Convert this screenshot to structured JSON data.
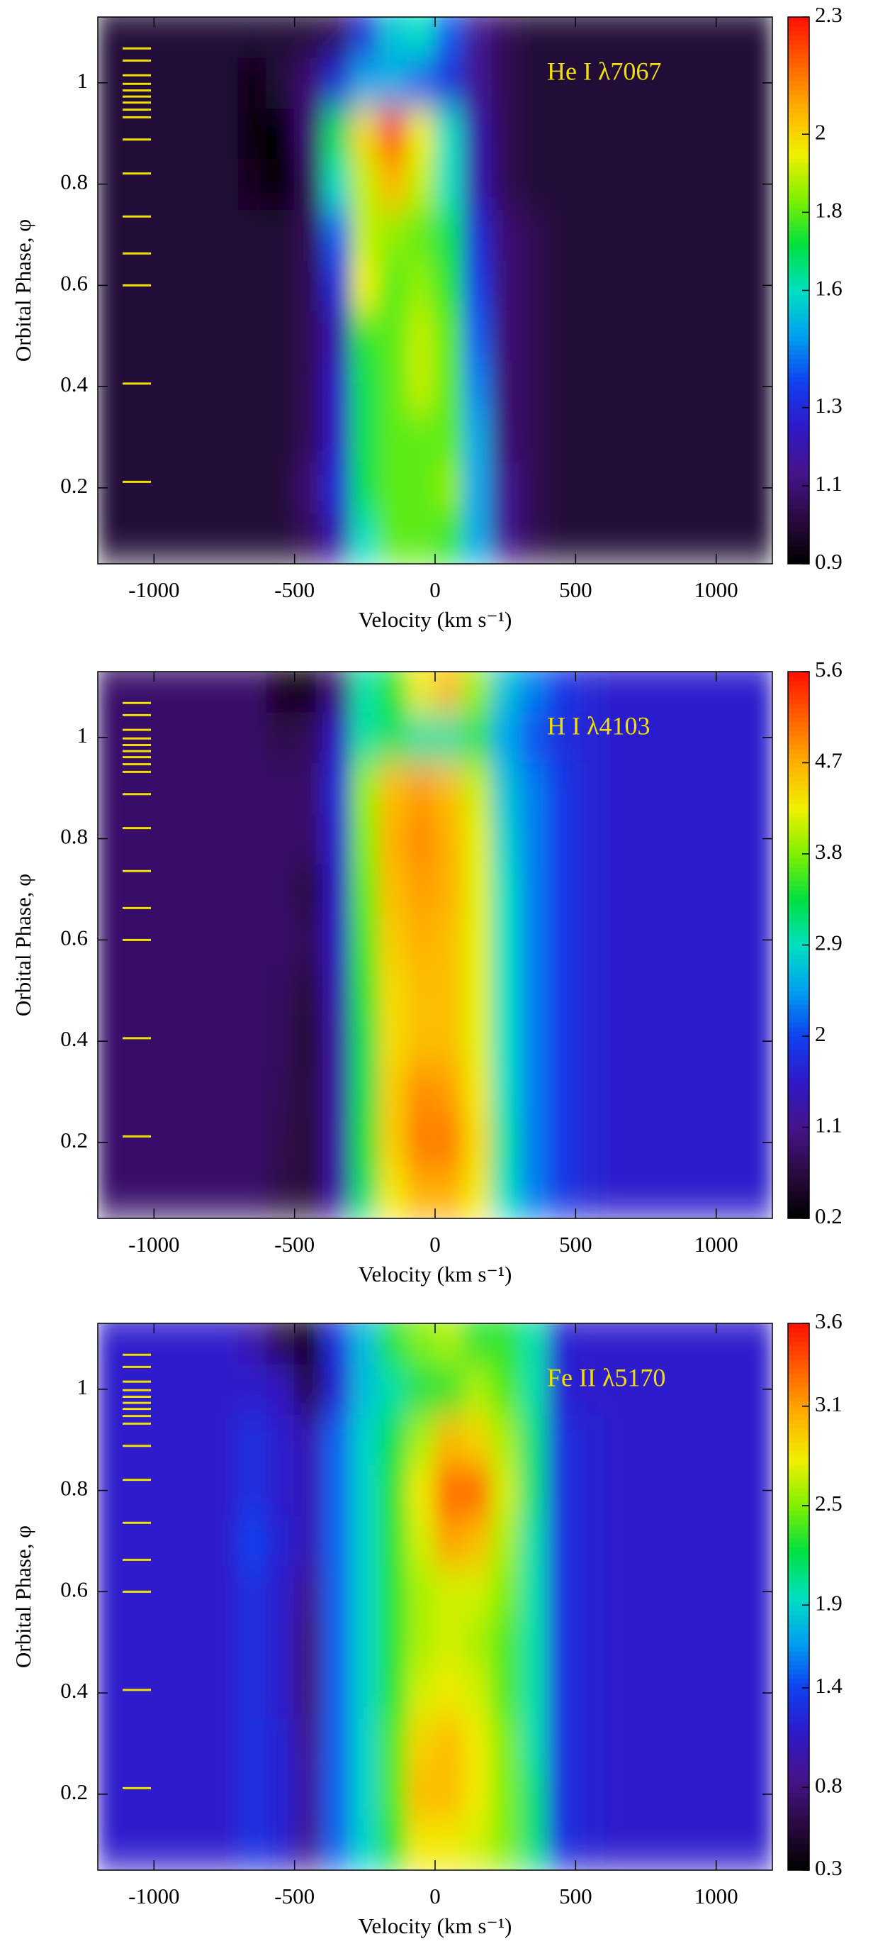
{
  "chart_data": [
    {
      "type": "heatmap",
      "annotation": "He I λ7067",
      "xlabel": "Velocity (km s⁻¹)",
      "ylabel": "Orbital Phase, φ",
      "xlim": [
        -1200,
        1200
      ],
      "xticks": [
        -1000,
        -500,
        0,
        500,
        1000
      ],
      "ylim": [
        0.05,
        1.13
      ],
      "yticks": [
        0.2,
        0.4,
        0.6,
        0.8,
        1.0
      ],
      "zlim": [
        0.9,
        2.3
      ],
      "zticks": [
        0.9,
        1.1,
        1.3,
        1.6,
        1.8,
        2.0,
        2.3
      ],
      "colormap": [
        "#000000",
        "#2a0a40",
        "#45148a",
        "#3018c8",
        "#1040f0",
        "#00a0f0",
        "#00e0c0",
        "#00e040",
        "#80f000",
        "#f0f000",
        "#ffb000",
        "#ff6000",
        "#ff1000"
      ],
      "annotation_color": "#f0e000",
      "marker_color": "#f0e000",
      "phase_markers": [
        1.068,
        1.044,
        1.015,
        0.998,
        0.985,
        0.973,
        0.961,
        0.947,
        0.932,
        0.888,
        0.821,
        0.736,
        0.663,
        0.6,
        0.406,
        0.212
      ],
      "x": [
        -1150,
        -1050,
        -950,
        -850,
        -750,
        -650,
        -550,
        -450,
        -350,
        -250,
        -150,
        -50,
        50,
        150,
        250,
        350,
        450,
        550,
        650,
        750,
        850,
        950,
        1050,
        1150
      ],
      "y": [
        0.1,
        0.2,
        0.3,
        0.4,
        0.5,
        0.6,
        0.7,
        0.8,
        0.9,
        1.0,
        1.1
      ],
      "z": [
        [
          1,
          1,
          1,
          1,
          1,
          1,
          1,
          1.05,
          1.2,
          1.6,
          1.8,
          1.8,
          1.75,
          1.5,
          1.15,
          1.05,
          1,
          1,
          1,
          1,
          1,
          1,
          1,
          1
        ],
        [
          1,
          1,
          1,
          1,
          1,
          1,
          1,
          1.1,
          1.3,
          1.7,
          1.8,
          1.8,
          1.85,
          1.5,
          1.15,
          1.05,
          1,
          1,
          1,
          1,
          1,
          1,
          1,
          1
        ],
        [
          1,
          1,
          1,
          1,
          1,
          1,
          1,
          1.05,
          1.25,
          1.7,
          1.8,
          1.8,
          1.8,
          1.5,
          1.1,
          1.05,
          1,
          1,
          1,
          1,
          1,
          1,
          1,
          1
        ],
        [
          1,
          1,
          1,
          1,
          1,
          1,
          1,
          1.05,
          1.25,
          1.7,
          1.8,
          1.9,
          1.8,
          1.45,
          1.1,
          1.05,
          1,
          1,
          1,
          1,
          1,
          1,
          1,
          1
        ],
        [
          1,
          1,
          1,
          1,
          1,
          1,
          1,
          1.05,
          1.2,
          1.75,
          1.8,
          1.9,
          1.8,
          1.4,
          1.1,
          1.05,
          1,
          1,
          1,
          1,
          1,
          1,
          1,
          1
        ],
        [
          1,
          1,
          1,
          1,
          1,
          1,
          1,
          1.05,
          1.3,
          1.95,
          1.8,
          1.85,
          1.75,
          1.35,
          1.1,
          1.05,
          1,
          1,
          1,
          1,
          1,
          1,
          1,
          1
        ],
        [
          1,
          1,
          1,
          1,
          1,
          1,
          1,
          1.05,
          1.4,
          1.9,
          1.85,
          1.8,
          1.7,
          1.3,
          1.1,
          1.05,
          1,
          1,
          1,
          1,
          1,
          1,
          1,
          1
        ],
        [
          1,
          1,
          1,
          1,
          1,
          0.95,
          0.9,
          1.05,
          1.6,
          1.9,
          2.05,
          1.9,
          1.6,
          1.2,
          1.05,
          1,
          1,
          1,
          1,
          1,
          1,
          1,
          1,
          1
        ],
        [
          1,
          1,
          1,
          1,
          1,
          0.92,
          0.9,
          1.1,
          1.7,
          2.0,
          2.2,
          1.95,
          1.6,
          1.2,
          1.05,
          1,
          1,
          1,
          1,
          1,
          1,
          1,
          1,
          1
        ],
        [
          1,
          1,
          1,
          1,
          1,
          0.92,
          1,
          1.1,
          1.3,
          1.5,
          1.5,
          1.4,
          1.3,
          1.15,
          1.05,
          1,
          1,
          1,
          1,
          1,
          1,
          1,
          1,
          1
        ],
        [
          1,
          1,
          1,
          1,
          1,
          1,
          1,
          1,
          1.05,
          1.3,
          1.55,
          1.6,
          1.4,
          1.15,
          1.05,
          1,
          1,
          1,
          1,
          1,
          1,
          1,
          1,
          1
        ]
      ]
    },
    {
      "type": "heatmap",
      "annotation": "H I λ4103",
      "xlabel": "Velocity (km s⁻¹)",
      "ylabel": "Orbital Phase, φ",
      "xlim": [
        -1200,
        1200
      ],
      "xticks": [
        -1000,
        -500,
        0,
        500,
        1000
      ],
      "ylim": [
        0.05,
        1.13
      ],
      "yticks": [
        0.2,
        0.4,
        0.6,
        0.8,
        1.0
      ],
      "zlim": [
        0.2,
        5.6
      ],
      "zticks": [
        0.2,
        1.1,
        2.0,
        2.9,
        3.8,
        4.7,
        5.6
      ],
      "colormap": [
        "#000000",
        "#2a0a40",
        "#45148a",
        "#3018c8",
        "#1040f0",
        "#00a0f0",
        "#00e0c0",
        "#00e040",
        "#80f000",
        "#f0f000",
        "#ffb000",
        "#ff6000",
        "#ff1000"
      ],
      "annotation_color": "#f0e000",
      "marker_color": "#f0e000",
      "phase_markers": [
        1.068,
        1.044,
        1.015,
        0.998,
        0.985,
        0.973,
        0.961,
        0.947,
        0.932,
        0.888,
        0.821,
        0.736,
        0.663,
        0.6,
        0.406,
        0.212
      ],
      "x": [
        -1150,
        -1050,
        -950,
        -850,
        -750,
        -650,
        -550,
        -450,
        -350,
        -250,
        -150,
        -50,
        50,
        150,
        250,
        350,
        450,
        550,
        650,
        750,
        850,
        950,
        1050,
        1150
      ],
      "y": [
        0.1,
        0.2,
        0.3,
        0.4,
        0.5,
        0.6,
        0.7,
        0.8,
        0.9,
        1.0,
        1.1
      ],
      "z": [
        [
          0.9,
          0.9,
          0.9,
          0.9,
          0.9,
          0.9,
          0.7,
          0.6,
          1.3,
          3.2,
          4.3,
          4.7,
          4.7,
          4.3,
          2.9,
          2.3,
          1.9,
          1.7,
          1.6,
          1.6,
          1.6,
          1.6,
          1.6,
          1.6
        ],
        [
          0.9,
          0.9,
          0.9,
          0.9,
          0.9,
          0.9,
          0.75,
          0.6,
          1.3,
          3.4,
          4.5,
          5.0,
          5.0,
          4.4,
          3.0,
          2.3,
          1.9,
          1.7,
          1.6,
          1.6,
          1.6,
          1.6,
          1.6,
          1.6
        ],
        [
          0.9,
          0.9,
          0.9,
          0.9,
          0.9,
          0.9,
          0.8,
          0.6,
          1.3,
          3.3,
          4.5,
          4.9,
          4.8,
          4.3,
          2.9,
          2.3,
          1.9,
          1.7,
          1.6,
          1.6,
          1.6,
          1.6,
          1.6,
          1.6
        ],
        [
          0.9,
          0.9,
          0.9,
          0.9,
          0.9,
          0.9,
          0.85,
          0.55,
          1.3,
          3.3,
          4.4,
          4.6,
          4.6,
          4.2,
          2.9,
          2.3,
          1.9,
          1.7,
          1.6,
          1.6,
          1.6,
          1.6,
          1.6,
          1.6
        ],
        [
          0.9,
          0.9,
          0.9,
          0.9,
          0.9,
          0.9,
          0.85,
          0.6,
          1.4,
          3.5,
          4.4,
          4.6,
          4.6,
          4.2,
          2.9,
          2.3,
          1.9,
          1.7,
          1.6,
          1.6,
          1.6,
          1.6,
          1.6,
          1.6
        ],
        [
          0.9,
          0.9,
          0.9,
          0.9,
          0.9,
          0.9,
          0.9,
          0.8,
          1.5,
          3.6,
          4.5,
          4.7,
          4.6,
          4.2,
          2.9,
          2.3,
          1.9,
          1.7,
          1.6,
          1.6,
          1.6,
          1.6,
          1.6,
          1.6
        ],
        [
          0.9,
          0.9,
          0.9,
          0.9,
          0.9,
          0.9,
          0.9,
          0.6,
          1.5,
          3.7,
          4.6,
          4.8,
          4.7,
          4.2,
          2.9,
          2.3,
          1.9,
          1.7,
          1.6,
          1.6,
          1.6,
          1.6,
          1.6,
          1.6
        ],
        [
          0.9,
          0.9,
          0.9,
          0.9,
          0.9,
          0.9,
          0.9,
          0.9,
          1.6,
          3.8,
          4.7,
          4.9,
          4.7,
          4.2,
          2.8,
          2.3,
          1.9,
          1.7,
          1.6,
          1.6,
          1.6,
          1.6,
          1.6,
          1.6
        ],
        [
          0.9,
          0.9,
          0.9,
          0.9,
          0.9,
          0.9,
          0.9,
          0.9,
          1.7,
          3.9,
          4.6,
          4.8,
          4.6,
          4.1,
          2.7,
          2.3,
          1.9,
          1.7,
          1.6,
          1.6,
          1.6,
          1.6,
          1.6,
          1.6
        ],
        [
          0.9,
          0.9,
          0.9,
          0.9,
          0.9,
          0.9,
          0.7,
          0.8,
          1.5,
          3.0,
          3.2,
          3.0,
          3.0,
          3.2,
          2.5,
          2.1,
          1.8,
          1.7,
          1.6,
          1.6,
          1.6,
          1.6,
          1.6,
          1.6
        ],
        [
          0.9,
          0.9,
          0.9,
          0.9,
          0.9,
          0.9,
          0.4,
          0.2,
          1.0,
          3.0,
          3.5,
          4.3,
          4.6,
          3.9,
          2.7,
          2.3,
          1.9,
          1.7,
          1.6,
          1.6,
          1.6,
          1.6,
          1.6,
          1.6
        ]
      ]
    },
    {
      "type": "heatmap",
      "annotation": "Fe II λ5170",
      "xlabel": "Velocity (km s⁻¹)",
      "ylabel": "Orbital Phase, φ",
      "xlim": [
        -1200,
        1200
      ],
      "xticks": [
        -1000,
        -500,
        0,
        500,
        1000
      ],
      "ylim": [
        0.05,
        1.13
      ],
      "yticks": [
        0.2,
        0.4,
        0.6,
        0.8,
        1.0
      ],
      "zlim": [
        0.3,
        3.6
      ],
      "zticks": [
        0.3,
        0.8,
        1.4,
        1.9,
        2.5,
        3.1,
        3.6
      ],
      "colormap": [
        "#000000",
        "#2a0a40",
        "#45148a",
        "#3018c8",
        "#1040f0",
        "#00a0f0",
        "#00e0c0",
        "#00e040",
        "#80f000",
        "#f0f000",
        "#ffb000",
        "#ff6000",
        "#ff1000"
      ],
      "annotation_color": "#f0e000",
      "marker_color": "#f0e000",
      "phase_markers": [
        1.068,
        1.044,
        1.015,
        0.998,
        0.985,
        0.973,
        0.961,
        0.947,
        0.932,
        0.888,
        0.821,
        0.736,
        0.663,
        0.6,
        0.406,
        0.212
      ],
      "x": [
        -1150,
        -1050,
        -950,
        -850,
        -750,
        -650,
        -550,
        -450,
        -350,
        -250,
        -150,
        -50,
        50,
        150,
        250,
        350,
        450,
        550,
        650,
        750,
        850,
        950,
        1050,
        1150
      ],
      "y": [
        0.1,
        0.2,
        0.3,
        0.4,
        0.5,
        0.6,
        0.7,
        0.8,
        0.9,
        1.0,
        1.1
      ],
      "z": [
        [
          1.15,
          1.15,
          1.15,
          1.15,
          1.15,
          1.3,
          1.2,
          0.9,
          1.5,
          1.9,
          2.3,
          2.8,
          2.8,
          2.7,
          2.5,
          2.1,
          1.3,
          1.2,
          1.15,
          1.15,
          1.15,
          1.15,
          1.15,
          1.15
        ],
        [
          1.15,
          1.15,
          1.15,
          1.15,
          1.15,
          1.3,
          1.2,
          0.95,
          1.5,
          1.9,
          2.4,
          3.0,
          3.0,
          2.8,
          2.5,
          2.1,
          1.3,
          1.2,
          1.15,
          1.15,
          1.15,
          1.15,
          1.15,
          1.15
        ],
        [
          1.15,
          1.15,
          1.15,
          1.15,
          1.15,
          1.3,
          1.2,
          0.9,
          1.5,
          1.9,
          2.4,
          2.9,
          3.0,
          2.8,
          2.5,
          2.0,
          1.3,
          1.2,
          1.15,
          1.15,
          1.15,
          1.15,
          1.15,
          1.15
        ],
        [
          1.15,
          1.15,
          1.15,
          1.15,
          1.15,
          1.3,
          1.15,
          0.8,
          1.5,
          1.9,
          2.3,
          2.7,
          2.8,
          2.7,
          2.4,
          2.0,
          1.3,
          1.2,
          1.15,
          1.15,
          1.15,
          1.15,
          1.15,
          1.15
        ],
        [
          1.15,
          1.15,
          1.15,
          1.15,
          1.15,
          1.3,
          1.15,
          0.8,
          1.5,
          1.9,
          2.3,
          2.6,
          2.7,
          2.6,
          2.4,
          2.0,
          1.3,
          1.2,
          1.15,
          1.15,
          1.15,
          1.15,
          1.15,
          1.15
        ],
        [
          1.15,
          1.15,
          1.15,
          1.15,
          1.15,
          1.3,
          1.15,
          0.9,
          1.5,
          1.9,
          2.3,
          2.6,
          2.7,
          2.7,
          2.5,
          2.0,
          1.3,
          1.2,
          1.15,
          1.15,
          1.15,
          1.15,
          1.15,
          1.15
        ],
        [
          1.15,
          1.15,
          1.15,
          1.15,
          1.15,
          1.4,
          1.2,
          1.05,
          1.5,
          1.9,
          2.3,
          2.7,
          3.1,
          3.0,
          2.6,
          2.0,
          1.3,
          1.2,
          1.15,
          1.15,
          1.15,
          1.15,
          1.15,
          1.15
        ],
        [
          1.15,
          1.15,
          1.15,
          1.15,
          1.15,
          1.3,
          1.15,
          1.05,
          1.5,
          1.9,
          2.3,
          2.8,
          3.3,
          3.3,
          2.7,
          2.1,
          1.3,
          1.2,
          1.15,
          1.15,
          1.15,
          1.15,
          1.15,
          1.15
        ],
        [
          1.15,
          1.15,
          1.15,
          1.15,
          1.15,
          1.3,
          1.15,
          1.05,
          1.5,
          1.9,
          2.2,
          2.6,
          3.0,
          2.9,
          2.6,
          2.1,
          1.3,
          1.2,
          1.15,
          1.15,
          1.15,
          1.15,
          1.15,
          1.15
        ],
        [
          1.15,
          1.15,
          1.15,
          1.15,
          1.15,
          1.15,
          1.1,
          0.6,
          1.2,
          1.8,
          2.0,
          2.2,
          2.3,
          2.6,
          2.4,
          2.0,
          1.2,
          1.15,
          1.15,
          1.15,
          1.15,
          1.15,
          1.15,
          1.15
        ],
        [
          1.15,
          1.15,
          1.15,
          1.15,
          1.15,
          1.0,
          0.6,
          0.4,
          1.3,
          1.8,
          2.3,
          2.5,
          2.6,
          2.3,
          2.3,
          2.0,
          1.2,
          1.15,
          1.15,
          1.15,
          1.15,
          1.15,
          1.15,
          1.15
        ]
      ]
    }
  ]
}
